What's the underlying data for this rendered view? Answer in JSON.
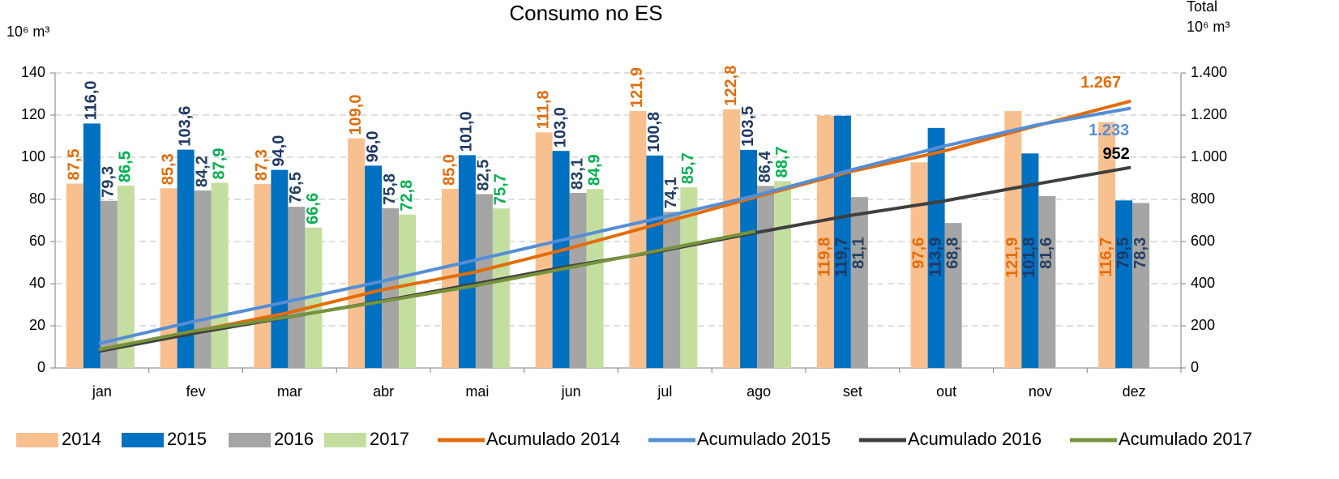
{
  "chart_data": {
    "type": "bar_line",
    "title": "Consumo no ES",
    "ylabel": "10⁶ m³",
    "y2label_top": "Total",
    "y2label": "10⁶ m³",
    "categories": [
      "jan",
      "fev",
      "mar",
      "abr",
      "mai",
      "jun",
      "jul",
      "ago",
      "set",
      "out",
      "nov",
      "dez"
    ],
    "ylim": [
      0,
      140
    ],
    "yticks": [
      0,
      20,
      40,
      60,
      80,
      100,
      120,
      140
    ],
    "y2lim": [
      0,
      1400
    ],
    "y2ticks": [
      0,
      200,
      400,
      600,
      800,
      {
        "value": 1000,
        "label": "1.000"
      },
      {
        "value": 1200,
        "label": "1.200"
      },
      {
        "value": 1400,
        "label": "1.400"
      }
    ],
    "grid": true,
    "legend": "bottom",
    "series": [
      {
        "name": "2014",
        "kind": "bar",
        "color": "#f9c08f",
        "label_color": "#e36c0a",
        "values": [
          87.5,
          85.3,
          87.3,
          109.0,
          85.0,
          111.8,
          121.9,
          122.8,
          119.8,
          97.6,
          121.9,
          116.7
        ],
        "value_labels": [
          "87,5",
          "85,3",
          "87,3",
          "109,0",
          "85,0",
          "111,8",
          "121,9",
          "122,8",
          "119,8",
          "97,6",
          "121,9",
          "116,7"
        ]
      },
      {
        "name": "2015",
        "kind": "bar",
        "color": "#0070c0",
        "label_color": "#1f3864",
        "values": [
          116.0,
          103.6,
          94.0,
          96.0,
          101.0,
          103.0,
          100.8,
          103.5,
          119.7,
          113.9,
          101.8,
          79.5
        ],
        "value_labels": [
          "116,0",
          "103,6",
          "94,0",
          "96,0",
          "101,0",
          "103,0",
          "100,8",
          "103,5",
          "119,7",
          "113,9",
          "101,8",
          "79,5"
        ]
      },
      {
        "name": "2016",
        "kind": "bar",
        "color": "#a5a5a5",
        "label_color": "#254061",
        "values": [
          79.3,
          84.2,
          76.5,
          75.8,
          82.5,
          83.1,
          74.1,
          86.4,
          81.1,
          68.8,
          81.6,
          78.3
        ],
        "value_labels": [
          "79,3",
          "84,2",
          "76,5",
          "75,8",
          "82,5",
          "83,1",
          "74,1",
          "86,4",
          "81,1",
          "68,8",
          "81,6",
          "78,3"
        ]
      },
      {
        "name": "2017",
        "kind": "bar",
        "color": "#c4dea0",
        "label_color": "#00b050",
        "values": [
          86.5,
          87.9,
          66.6,
          72.8,
          75.7,
          84.9,
          85.7,
          88.7,
          null,
          null,
          null,
          null
        ],
        "value_labels": [
          "86,5",
          "87,9",
          "66,6",
          "72,8",
          "75,7",
          "84,9",
          "85,7",
          "88,7",
          null,
          null,
          null,
          null
        ]
      },
      {
        "name": "Acumulado 2014",
        "kind": "line",
        "axis": "y2",
        "color": "#e36c0a",
        "values": [
          87.5,
          172.8,
          260.1,
          369.1,
          454.1,
          565.9,
          687.8,
          810.6,
          930.4,
          1028.0,
          1149.9,
          1266.6
        ],
        "value_labels": [
          null,
          null,
          null,
          null,
          null,
          null,
          null,
          null,
          null,
          null,
          null,
          "1.267"
        ]
      },
      {
        "name": "Acumulado 2015",
        "kind": "line",
        "axis": "y2",
        "color": "#558ed5",
        "values": [
          116.0,
          219.6,
          313.6,
          409.6,
          510.6,
          613.6,
          714.4,
          817.9,
          937.6,
          1051.5,
          1153.3,
          1232.8
        ],
        "value_labels": [
          null,
          null,
          null,
          null,
          null,
          null,
          null,
          null,
          null,
          null,
          null,
          "1.233"
        ]
      },
      {
        "name": "Acumulado 2016",
        "kind": "line",
        "axis": "y2",
        "color": "#3f3f3f",
        "values": [
          79.3,
          163.5,
          240.0,
          315.8,
          398.3,
          481.4,
          555.5,
          641.9,
          723.0,
          791.8,
          873.4,
          951.7
        ],
        "value_labels": [
          null,
          null,
          null,
          null,
          null,
          null,
          null,
          null,
          null,
          null,
          null,
          "952"
        ]
      },
      {
        "name": "Acumulado 2017",
        "kind": "line",
        "axis": "y2",
        "color": "#77933c",
        "values": [
          86.5,
          174.4,
          241.0,
          313.8,
          389.5,
          474.4,
          560.1,
          648.8,
          null,
          null,
          null,
          null
        ]
      }
    ]
  }
}
